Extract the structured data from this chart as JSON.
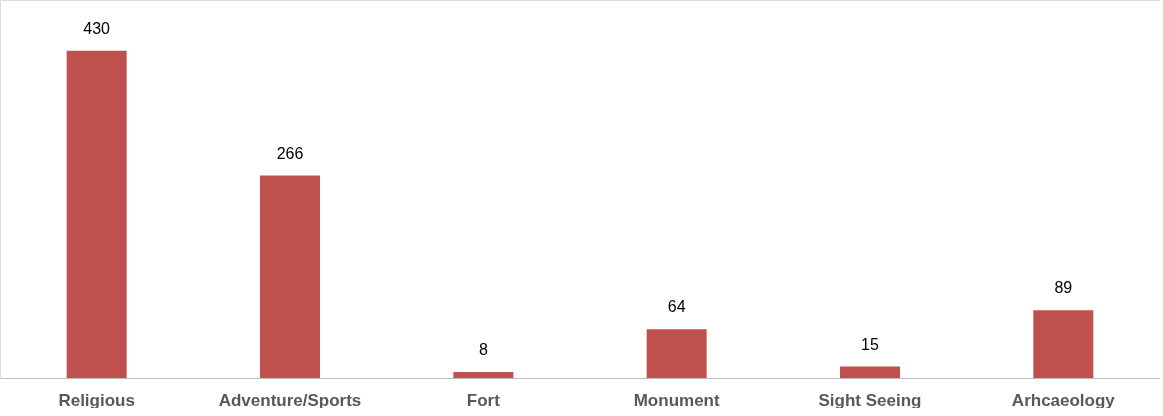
{
  "chart_data": {
    "type": "bar",
    "categories": [
      "Religious",
      "Adventure/Sports",
      "Fort",
      "Monument",
      "Sight Seeing",
      "Arhcaeology"
    ],
    "values": [
      430,
      266,
      8,
      64,
      15,
      89
    ],
    "color": "#c0504d",
    "data_labels": true
  }
}
